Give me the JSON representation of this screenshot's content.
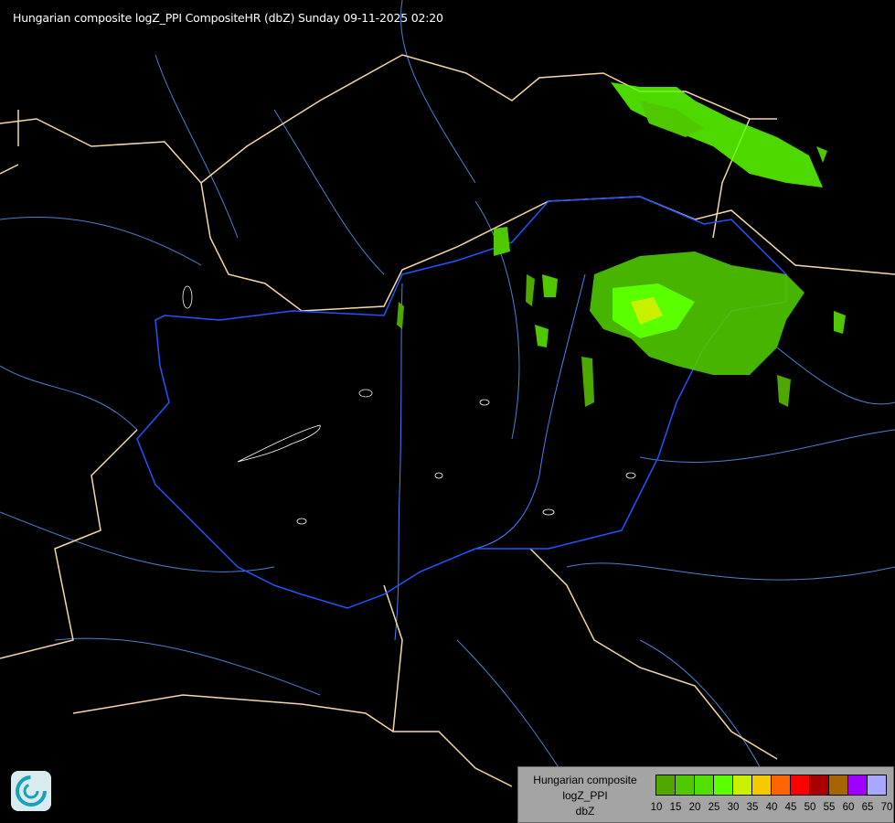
{
  "title": "Hungarian composite logZ_PPI CompositeHR (dbZ) Sunday 09-11-2025 02:20",
  "legend": {
    "line1": "Hungarian composite",
    "line2": "logZ_PPI",
    "line3": "dbZ",
    "ticks": [
      "10",
      "15",
      "20",
      "25",
      "30",
      "35",
      "40",
      "45",
      "50",
      "55",
      "60",
      "65",
      "70"
    ],
    "colors": [
      "#4fa800",
      "#4fc800",
      "#50e000",
      "#5aff00",
      "#c8f000",
      "#f5c800",
      "#ff6400",
      "#ff0000",
      "#a80000",
      "#a86400",
      "#a000ff",
      "#a8a8ff"
    ]
  },
  "colors": {
    "country_border": "#f5d8a8",
    "hungary_border": "#2255ff",
    "rivers": "#6aa0e0",
    "echo_low": "#4fc800",
    "echo_mid": "#5aff00",
    "echo_high": "#c8f000"
  },
  "logo": "radar-service-logo"
}
